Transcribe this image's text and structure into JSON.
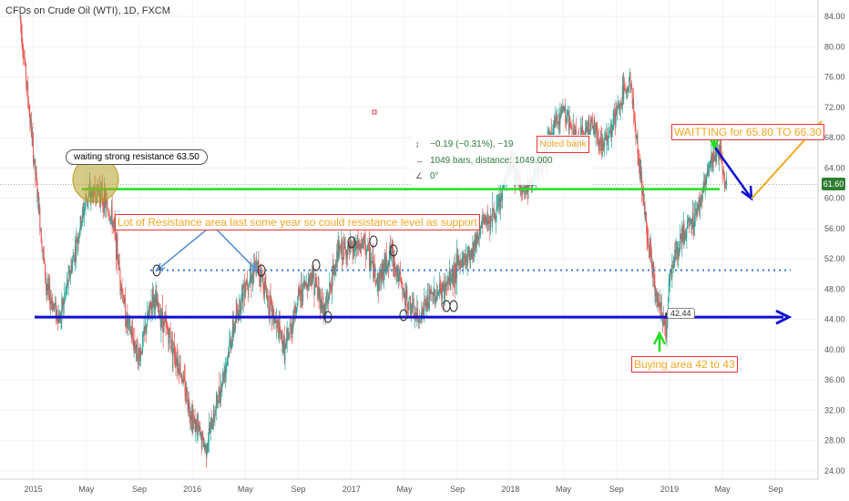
{
  "title": "CFDs on Crude Oil (WTI), 1D, FXCM",
  "colors": {
    "up": "#26a69a",
    "down": "#ef5350",
    "support": "#1010d0",
    "resistance": "#22dd22",
    "mid_dotted": "#3a7bd5",
    "arrow_orange": "#f5a623",
    "arrow_blue": "#1010d0",
    "green_arrow": "#22dd22",
    "last_price_bg": "#2e7d32"
  },
  "chart_data": {
    "type": "candlestick",
    "title": "CFDs on Crude Oil (WTI), 1D, FXCM",
    "x_ticks": [
      "2015",
      "May",
      "Sep",
      "2016",
      "May",
      "Sep",
      "2017",
      "May",
      "Sep",
      "2018",
      "May",
      "Sep",
      "2019",
      "May",
      "Sep"
    ],
    "y_ticks": [
      "84.00",
      "80.00",
      "76.00",
      "72.00",
      "68.00",
      "64.00",
      "60.00",
      "56.00",
      "52.00",
      "48.00",
      "44.00",
      "40.00",
      "36.00",
      "32.00",
      "28.00",
      "24.00"
    ],
    "ylim": [
      23,
      85
    ],
    "x_range_months": [
      "2014-12",
      "2019-10"
    ],
    "last_price": "61.60",
    "price_path": [
      [
        "2014-12",
        84
      ],
      [
        "2015-01",
        66
      ],
      [
        "2015-02",
        48
      ],
      [
        "2015-03",
        44
      ],
      [
        "2015-04",
        52
      ],
      [
        "2015-05",
        60
      ],
      [
        "2015-06",
        61
      ],
      [
        "2015-07",
        57
      ],
      [
        "2015-08",
        44
      ],
      [
        "2015-09",
        39
      ],
      [
        "2015-10",
        47
      ],
      [
        "2015-11",
        43
      ],
      [
        "2015-12",
        38
      ],
      [
        "2016-01",
        31
      ],
      [
        "2016-02",
        27
      ],
      [
        "2016-03",
        34
      ],
      [
        "2016-04",
        42
      ],
      [
        "2016-05",
        49
      ],
      [
        "2016-06",
        51
      ],
      [
        "2016-07",
        45
      ],
      [
        "2016-08",
        40
      ],
      [
        "2016-09",
        47
      ],
      [
        "2016-10",
        50
      ],
      [
        "2016-11",
        45
      ],
      [
        "2016-12",
        53
      ],
      [
        "2017-01",
        53
      ],
      [
        "2017-02",
        54
      ],
      [
        "2017-03",
        49
      ],
      [
        "2017-04",
        53
      ],
      [
        "2017-05",
        47
      ],
      [
        "2017-06",
        44
      ],
      [
        "2017-07",
        47
      ],
      [
        "2017-08",
        48
      ],
      [
        "2017-09",
        51
      ],
      [
        "2017-10",
        53
      ],
      [
        "2017-11",
        57
      ],
      [
        "2017-12",
        58
      ],
      [
        "2018-01",
        65
      ],
      [
        "2018-02",
        61
      ],
      [
        "2018-03",
        63
      ],
      [
        "2018-04",
        68
      ],
      [
        "2018-05",
        72
      ],
      [
        "2018-06",
        67
      ],
      [
        "2018-07",
        70
      ],
      [
        "2018-08",
        67
      ],
      [
        "2018-09",
        71
      ],
      [
        "2018-10",
        76
      ],
      [
        "2018-11",
        60
      ],
      [
        "2018-12",
        47
      ],
      [
        "2018-12-24",
        42.5
      ],
      [
        "2019-01",
        50
      ],
      [
        "2019-02",
        55
      ],
      [
        "2019-03",
        58
      ],
      [
        "2019-04",
        64
      ],
      [
        "2019-04-24",
        66.3
      ],
      [
        "2019-05-10",
        61.6
      ]
    ]
  },
  "annotations": {
    "bubble_text": "waiting strong resistance 63.50",
    "resistance_note": "Lot of Resistance area last some year so could resistance level as support",
    "waiting_note": "WAITTING for 65.80 TO 66.30",
    "buying_note": "Buying area 42 to 43",
    "low_price_tag": "42.44",
    "measure_line1": "−0.19 (−0.31%), −19",
    "measure_line2": "1049 bars, distance: 1049.000",
    "measure_line3": "0°",
    "measure_icon1": "↨",
    "measure_icon2": "↔",
    "measure_icon3": "∠",
    "overlap_text": "Noted bank",
    "support_level": 44.3,
    "resistance_level": 61.2,
    "mid_level": 50.5
  }
}
